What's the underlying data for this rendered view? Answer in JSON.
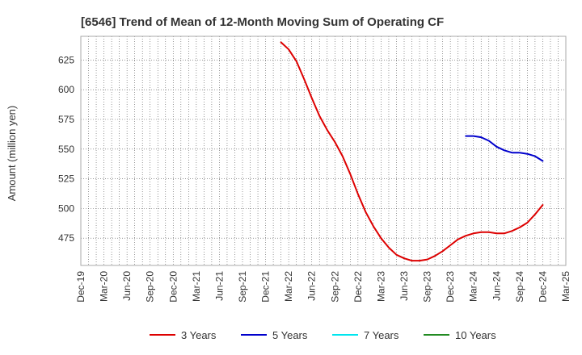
{
  "chart_data": {
    "type": "line",
    "title": "[6546]  Trend of Mean of 12-Month Moving Sum of Operating CF",
    "xlabel": "",
    "ylabel": "Amount (million yen)",
    "x_ticks": [
      "Dec-19",
      "Mar-20",
      "Jun-20",
      "Sep-20",
      "Dec-20",
      "Mar-21",
      "Jun-21",
      "Sep-21",
      "Dec-21",
      "Mar-22",
      "Jun-22",
      "Sep-22",
      "Dec-22",
      "Mar-23",
      "Jun-23",
      "Sep-23",
      "Dec-23",
      "Mar-24",
      "Jun-24",
      "Sep-24",
      "Dec-24",
      "Mar-25"
    ],
    "y_ticks": [
      475,
      500,
      525,
      550,
      575,
      600,
      625
    ],
    "ylim": [
      452,
      645
    ],
    "grid": true,
    "series": [
      {
        "name": "3 Years",
        "color": "#dd0000",
        "x": [
          "Feb-22",
          "Mar-22",
          "Apr-22",
          "May-22",
          "Jun-22",
          "Jul-22",
          "Aug-22",
          "Sep-22",
          "Oct-22",
          "Nov-22",
          "Dec-22",
          "Jan-23",
          "Feb-23",
          "Mar-23",
          "Apr-23",
          "May-23",
          "Jun-23",
          "Jul-23",
          "Aug-23",
          "Sep-23",
          "Oct-23",
          "Nov-23",
          "Dec-23",
          "Jan-24",
          "Feb-24",
          "Mar-24",
          "Apr-24",
          "May-24",
          "Jun-24",
          "Jul-24",
          "Aug-24",
          "Sep-24",
          "Oct-24",
          "Nov-24",
          "Dec-24"
        ],
        "values": [
          640,
          634,
          624,
          609,
          593,
          578,
          566,
          556,
          544,
          529,
          512,
          497,
          485,
          475,
          467,
          461,
          458,
          456,
          456,
          457,
          460,
          464,
          469,
          474,
          477,
          479,
          480,
          480,
          479,
          479,
          481,
          484,
          488,
          495,
          503
        ]
      },
      {
        "name": "5 Years",
        "color": "#0000cc",
        "x": [
          "Feb-24",
          "Mar-24",
          "Apr-24",
          "May-24",
          "Jun-24",
          "Jul-24",
          "Aug-24",
          "Sep-24",
          "Oct-24",
          "Nov-24",
          "Dec-24"
        ],
        "values": [
          561,
          561,
          560,
          557,
          552,
          549,
          547,
          547,
          546,
          544,
          540
        ]
      },
      {
        "name": "7 Years",
        "color": "#00e5ee",
        "x": [],
        "values": []
      },
      {
        "name": "10 Years",
        "color": "#228b22",
        "x": [],
        "values": []
      }
    ]
  }
}
